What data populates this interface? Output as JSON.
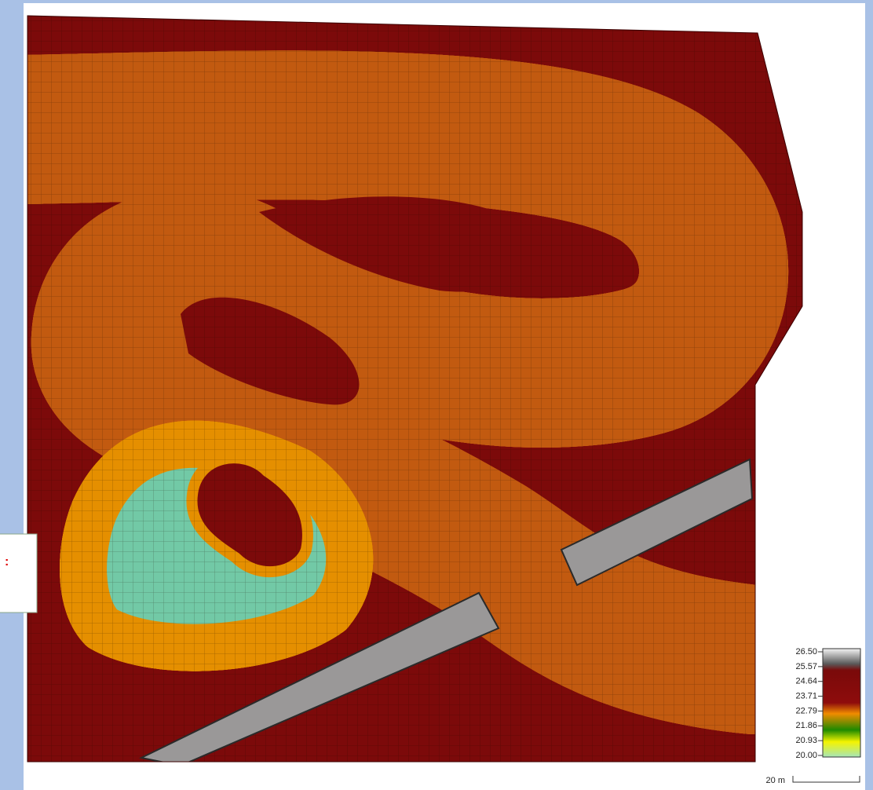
{
  "callout": {
    "text": ":"
  },
  "legend": {
    "labels": [
      "26.50",
      "25.57",
      "24.64",
      "23.71",
      "22.79",
      "21.86",
      "20.93",
      "20.00"
    ]
  },
  "scale": {
    "label": "20 m"
  }
}
